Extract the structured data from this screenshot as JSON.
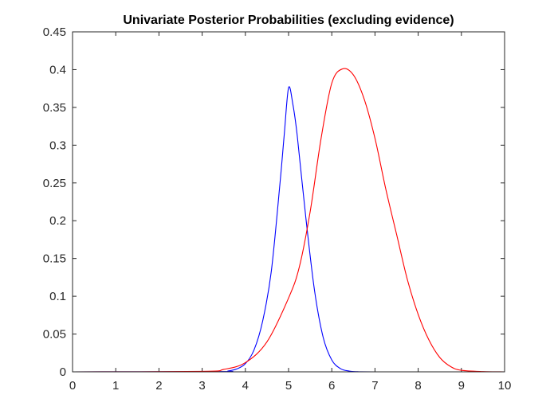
{
  "chart_data": {
    "type": "line",
    "title": "Univariate Posterior Probabilities (excluding evidence)",
    "xlabel": "",
    "ylabel": "",
    "xlim": [
      0,
      10
    ],
    "ylim": [
      0,
      0.45
    ],
    "grid": false,
    "legend": "none",
    "x_ticks": [
      "0",
      "1",
      "2",
      "3",
      "4",
      "5",
      "6",
      "7",
      "8",
      "9",
      "10"
    ],
    "y_ticks": [
      "0",
      "0.05",
      "0.1",
      "0.15",
      "0.2",
      "0.25",
      "0.3",
      "0.35",
      "0.4",
      "0.45"
    ],
    "series": [
      {
        "color": "#0000ff",
        "x": [
          0,
          3.4,
          3.6,
          3.8,
          4.0,
          4.2,
          4.4,
          4.6,
          4.8,
          4.9,
          5.0,
          5.1,
          5.2,
          5.4,
          5.6,
          5.8,
          6.0,
          6.2,
          6.4,
          6.6,
          7.0,
          10
        ],
        "y": [
          0,
          0.0003,
          0.0011,
          0.0038,
          0.0108,
          0.0289,
          0.0671,
          0.1328,
          0.2487,
          0.314,
          0.376,
          0.354,
          0.313,
          0.204,
          0.108,
          0.0459,
          0.0157,
          0.0043,
          0.001,
          0.0002,
          0,
          0
        ]
      },
      {
        "color": "#ff0000",
        "x": [
          0,
          3.0,
          3.5,
          4.0,
          4.5,
          5.0,
          5.25,
          5.5,
          5.75,
          6.0,
          6.25,
          6.5,
          6.75,
          7.0,
          7.25,
          7.5,
          7.75,
          8.0,
          8.25,
          8.5,
          8.75,
          9.0,
          9.5,
          10
        ],
        "y": [
          0,
          0.0006,
          0.0032,
          0.0122,
          0.0397,
          0.0977,
          0.139,
          0.212,
          0.308,
          0.382,
          0.401,
          0.393,
          0.361,
          0.309,
          0.242,
          0.182,
          0.122,
          0.076,
          0.042,
          0.019,
          0.007,
          0.002,
          0.0003,
          0
        ]
      }
    ]
  }
}
